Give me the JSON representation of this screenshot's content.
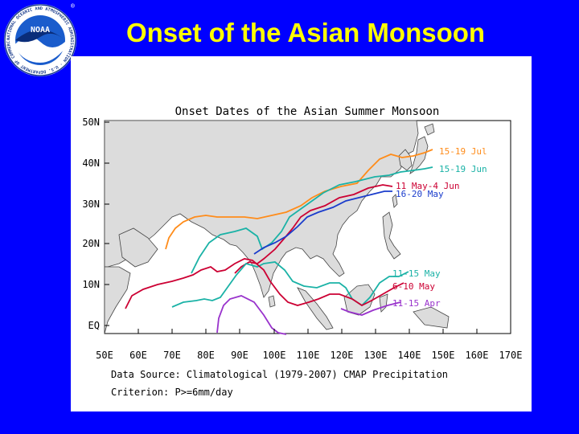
{
  "slide": {
    "title": "Onset of the Asian Monsoon",
    "background_color": "#0000ff",
    "title_color": "#ffff00"
  },
  "logo": {
    "center_text": "NOAA",
    "ring_text": "NATIONAL OCEANIC AND ATMOSPHERIC ADMINISTRATION · U.S. DEPARTMENT OF COMMERCE",
    "registered_mark": "®"
  },
  "map": {
    "title": "Onset Dates of the Asian Summer Monsoon",
    "lat_ticks": [
      "50N",
      "40N",
      "30N",
      "20N",
      "10N",
      "EQ"
    ],
    "lon_ticks": [
      "50E",
      "60E",
      "70E",
      "80E",
      "90E",
      "100E",
      "110E",
      "120E",
      "130E",
      "140E",
      "150E",
      "160E",
      "170E"
    ],
    "extent": {
      "lon": [
        50,
        170
      ],
      "lat": [
        -4,
        50
      ]
    },
    "land_color": "#dcdcdc",
    "isochrones": [
      {
        "label": "15-19 Jul",
        "color": "#ff8c1a"
      },
      {
        "label": "15-19 Jun",
        "color": "#1ab2a6"
      },
      {
        "label": "11 May-4 Jun",
        "color": "#cc0033"
      },
      {
        "label": "16-20 May",
        "color": "#1a3ccc"
      },
      {
        "label": "11-15 May",
        "color": "#1ab2a6"
      },
      {
        "label": "6-10 May",
        "color": "#cc0033"
      },
      {
        "label": "11-15 Apr",
        "color": "#9933cc"
      }
    ],
    "footer": {
      "source": "Data Source: Climatological (1979-2007) CMAP Precipitation",
      "criterion": "Criterion: P>=6mm/day"
    }
  }
}
